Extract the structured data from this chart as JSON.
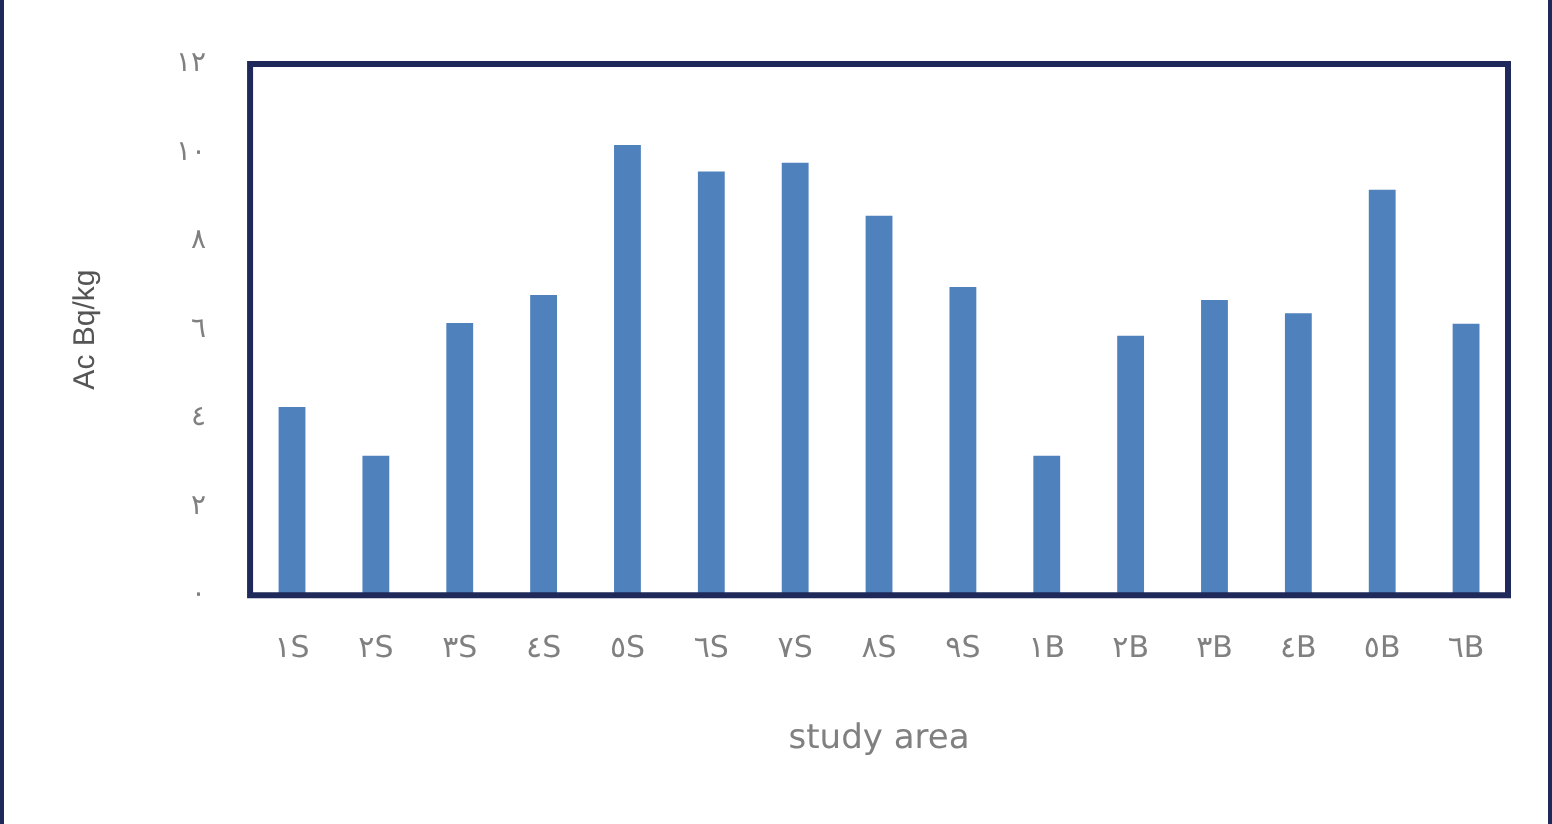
{
  "chart_data": {
    "type": "bar",
    "xlabel": "study area",
    "ylabel": "Ac Bq/kg",
    "categories": [
      "١S",
      "٢S",
      "٣S",
      "٤S",
      "٥S",
      "٦S",
      "٧S",
      "٨S",
      "٩S",
      "١B",
      "٢B",
      "٣B",
      "٤B",
      "٥B",
      "٦B"
    ],
    "values": [
      4.25,
      3.15,
      6.15,
      6.78,
      10.17,
      9.57,
      9.77,
      8.57,
      6.96,
      3.15,
      5.86,
      6.67,
      6.37,
      9.16,
      6.13
    ],
    "color": "#4f81bd",
    "ylim": [
      0,
      12
    ],
    "yticks": [
      {
        "value": 0,
        "label": "٠"
      },
      {
        "value": 2,
        "label": "٢"
      },
      {
        "value": 4,
        "label": "٤"
      },
      {
        "value": 6,
        "label": "٦"
      },
      {
        "value": 8,
        "label": "٨"
      },
      {
        "value": 10,
        "label": "١٠"
      },
      {
        "value": 12,
        "label": "١٢"
      }
    ],
    "grid": false
  }
}
